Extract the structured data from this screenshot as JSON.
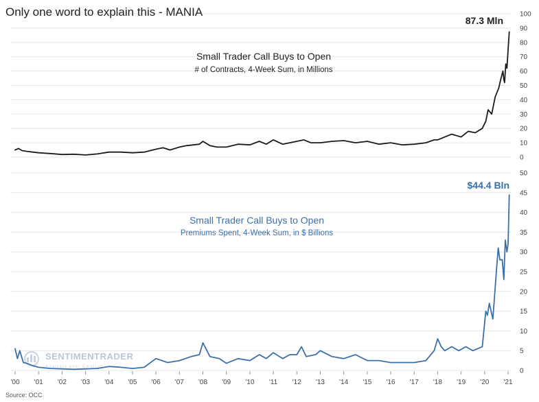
{
  "title": "Only one word to explain this - MANIA",
  "source": "Source: OCC",
  "watermark": {
    "text": "SENTIMENTRADER",
    "tagline": "Analysis over Emotion"
  },
  "colors": {
    "top_series": "#1a1a1a",
    "bottom_series": "#3b6fa8",
    "gridline": "#e6e6e6",
    "watermark": "#b9c7d6"
  },
  "x_tick_labels": [
    "'00",
    "'01",
    "'02",
    "'03",
    "'04",
    "'05",
    "'06",
    "'07",
    "'08",
    "'09",
    "'10",
    "'11",
    "'12",
    "'13",
    "'14",
    "'15",
    "'16",
    "'17",
    "'18",
    "'19",
    "'20",
    "'21"
  ],
  "chart_data": [
    {
      "type": "line",
      "title": "Small Trader Call Buys to Open",
      "subtitle": "# of Contracts, 4-Week Sum, in Millions",
      "end_label": "87.3 Mln",
      "ylim": [
        0,
        100
      ],
      "y_ticks": [
        0,
        10,
        20,
        30,
        40,
        50,
        60,
        70,
        80,
        90,
        100
      ],
      "series": [
        {
          "x": [
            2000.0,
            2000.15,
            2000.3,
            2000.5,
            2000.75,
            2001.0,
            2001.5,
            2002.0,
            2002.5,
            2003.0,
            2003.5,
            2004.0,
            2004.5,
            2005.0,
            2005.5,
            2006.0,
            2006.3,
            2006.6,
            2007.0,
            2007.3,
            2007.6,
            2007.85,
            2008.0,
            2008.3,
            2008.6,
            2009.0,
            2009.5,
            2010.0,
            2010.4,
            2010.7,
            2011.0,
            2011.4,
            2011.7,
            2012.0,
            2012.3,
            2012.6,
            2013.0,
            2013.5,
            2014.0,
            2014.5,
            2015.0,
            2015.5,
            2016.0,
            2016.5,
            2017.0,
            2017.5,
            2017.85,
            2018.0,
            2018.3,
            2018.6,
            2019.0,
            2019.3,
            2019.6,
            2019.9,
            2020.05,
            2020.15,
            2020.3,
            2020.45,
            2020.6,
            2020.7,
            2020.78,
            2020.82,
            2020.85,
            2020.9,
            2020.95,
            2021.0,
            2021.05
          ],
          "values": [
            5,
            6,
            4.5,
            4,
            3.5,
            3,
            2.5,
            1.8,
            2,
            1.5,
            2.2,
            3.5,
            3.5,
            3,
            3.5,
            5.5,
            6.5,
            5,
            7,
            8,
            8.5,
            9,
            11,
            8,
            7,
            7,
            9,
            8.5,
            11,
            9,
            12,
            9,
            10,
            11,
            12,
            10,
            10,
            11,
            11.5,
            10,
            11,
            9,
            10,
            8.5,
            9,
            10,
            12,
            12,
            14,
            16,
            14,
            18,
            17,
            20,
            25,
            33,
            30,
            42,
            48,
            55,
            60,
            54,
            52,
            65,
            62,
            75,
            87.3
          ]
        }
      ]
    },
    {
      "type": "line",
      "title": "Small Trader Call Buys to Open",
      "subtitle": "Premiums Spent, 4-Week Sum, in $ Billions",
      "end_label": "$44.4 Bln",
      "ylim": [
        0,
        50
      ],
      "y_ticks": [
        0,
        5,
        10,
        15,
        20,
        25,
        30,
        35,
        40,
        45,
        50
      ],
      "series": [
        {
          "x": [
            2000.0,
            2000.1,
            2000.2,
            2000.35,
            2000.5,
            2000.75,
            2001.0,
            2001.5,
            2002.0,
            2002.5,
            2003.0,
            2003.5,
            2004.0,
            2004.5,
            2005.0,
            2005.5,
            2006.0,
            2006.5,
            2007.0,
            2007.5,
            2007.85,
            2008.0,
            2008.3,
            2008.7,
            2009.0,
            2009.5,
            2010.0,
            2010.4,
            2010.7,
            2011.0,
            2011.4,
            2011.7,
            2012.0,
            2012.2,
            2012.4,
            2012.8,
            2013.0,
            2013.5,
            2014.0,
            2014.5,
            2015.0,
            2015.5,
            2016.0,
            2016.5,
            2017.0,
            2017.5,
            2017.85,
            2018.0,
            2018.15,
            2018.3,
            2018.6,
            2018.9,
            2019.2,
            2019.5,
            2019.9,
            2020.05,
            2020.12,
            2020.2,
            2020.35,
            2020.5,
            2020.58,
            2020.65,
            2020.75,
            2020.82,
            2020.88,
            2020.95,
            2021.0,
            2021.05
          ],
          "values": [
            5.5,
            3,
            5,
            2,
            1.8,
            1.2,
            0.8,
            0.5,
            0.4,
            0.3,
            0.4,
            0.5,
            1,
            0.8,
            0.5,
            0.8,
            3,
            2,
            2.5,
            3.5,
            4,
            7,
            3.5,
            3,
            1.8,
            3,
            2.5,
            4,
            3,
            4.5,
            3,
            4,
            4,
            6,
            3.5,
            4,
            5,
            3.5,
            3,
            4,
            2.5,
            2.5,
            2,
            2,
            2,
            2.5,
            5,
            8,
            6,
            5,
            6,
            5,
            6,
            5,
            6,
            15,
            14,
            17,
            13,
            25,
            31,
            28,
            28,
            23,
            33,
            30,
            32,
            44.4
          ]
        }
      ]
    }
  ]
}
